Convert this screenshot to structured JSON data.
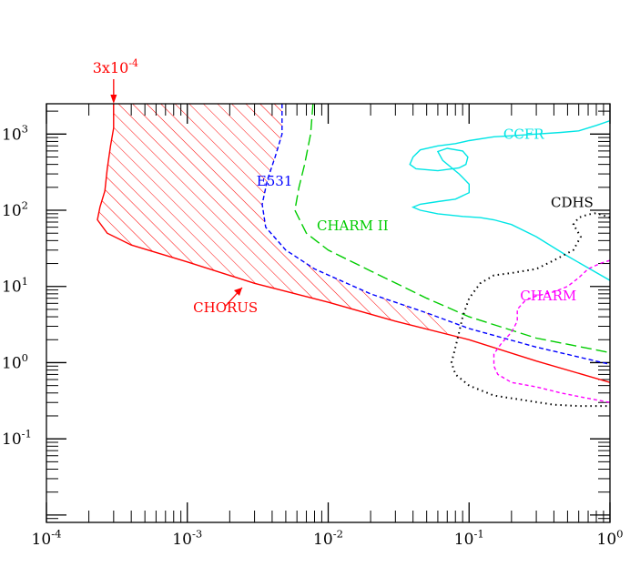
{
  "chart_data": {
    "type": "line",
    "x_scale": "log",
    "y_scale": "log",
    "xlim": [
      0.0001,
      1
    ],
    "ylim": [
      0.008,
      2500
    ],
    "x_ticks": [
      {
        "value": 0.0001,
        "base": "10",
        "exp": "-4"
      },
      {
        "value": 0.001,
        "base": "10",
        "exp": "-3"
      },
      {
        "value": 0.01,
        "base": "10",
        "exp": "-2"
      },
      {
        "value": 0.1,
        "base": "10",
        "exp": "-1"
      },
      {
        "value": 1,
        "base": "10",
        "exp": "0"
      }
    ],
    "y_ticks": [
      {
        "value": 0.1,
        "base": "10",
        "exp": "-1"
      },
      {
        "value": 1,
        "base": "10",
        "exp": "0"
      },
      {
        "value": 10,
        "base": "10",
        "exp": "1"
      },
      {
        "value": 100,
        "base": "10",
        "exp": "2"
      },
      {
        "value": 1000,
        "base": "10",
        "exp": "3"
      }
    ],
    "annotation": {
      "base": "3x10",
      "exp": "-4",
      "x": 0.0003,
      "color": "#ff0000"
    },
    "series": [
      {
        "name": "CHORUS",
        "color": "#ff0000",
        "dash": "solid",
        "label_at": [
          0.0011,
          4.6
        ],
        "hatched": true,
        "points": [
          [
            0.0003,
            2500
          ],
          [
            0.0003,
            1200
          ],
          [
            0.000285,
            700
          ],
          [
            0.00027,
            350
          ],
          [
            0.00026,
            180
          ],
          [
            0.00024,
            110
          ],
          [
            0.00023,
            75
          ],
          [
            0.00027,
            50
          ],
          [
            0.0004,
            35
          ],
          [
            0.001,
            21
          ],
          [
            0.003,
            11
          ],
          [
            0.01,
            6.2
          ],
          [
            0.03,
            3.5
          ],
          [
            0.1,
            2.0
          ],
          [
            0.3,
            1.05
          ],
          [
            1,
            0.55
          ]
        ]
      },
      {
        "name": "E531",
        "color": "#0000ff",
        "dash": "5,3",
        "label_at": [
          0.0031,
          210
        ],
        "points": [
          [
            0.0047,
            2500
          ],
          [
            0.0047,
            1000
          ],
          [
            0.0042,
            500
          ],
          [
            0.0037,
            250
          ],
          [
            0.0034,
            120
          ],
          [
            0.0036,
            60
          ],
          [
            0.005,
            30
          ],
          [
            0.008,
            17
          ],
          [
            0.02,
            8
          ],
          [
            0.05,
            4.5
          ],
          [
            0.1,
            2.8
          ],
          [
            0.3,
            1.6
          ],
          [
            1,
            0.95
          ]
        ]
      },
      {
        "name": "CHARM II",
        "color": "#00cc00",
        "dash": "12,5",
        "label_at": [
          0.0083,
          55
        ],
        "points": [
          [
            0.0078,
            2500
          ],
          [
            0.0075,
            1000
          ],
          [
            0.0068,
            400
          ],
          [
            0.0062,
            200
          ],
          [
            0.0058,
            100
          ],
          [
            0.007,
            50
          ],
          [
            0.01,
            30
          ],
          [
            0.02,
            16
          ],
          [
            0.05,
            7
          ],
          [
            0.1,
            4
          ],
          [
            0.3,
            2.1
          ],
          [
            1,
            1.35
          ]
        ]
      },
      {
        "name": "CCFR",
        "color": "#00e5e5",
        "dash": "solid",
        "label_at": [
          0.175,
          870
        ],
        "points": [
          [
            1,
            1500
          ],
          [
            0.8,
            1300
          ],
          [
            0.6,
            1100
          ],
          [
            0.45,
            1050
          ],
          [
            0.3,
            1000
          ],
          [
            0.2,
            950
          ],
          [
            0.15,
            920
          ],
          [
            0.1,
            820
          ],
          [
            0.08,
            750
          ],
          [
            0.06,
            700
          ],
          [
            0.045,
            620
          ],
          [
            0.04,
            500
          ],
          [
            0.038,
            400
          ],
          [
            0.042,
            350
          ],
          [
            0.06,
            330
          ],
          [
            0.085,
            360
          ],
          [
            0.095,
            400
          ],
          [
            0.098,
            500
          ],
          [
            0.09,
            600
          ],
          [
            0.07,
            650
          ],
          [
            0.06,
            590
          ],
          [
            0.065,
            450
          ],
          [
            0.085,
            300
          ],
          [
            0.1,
            220
          ],
          [
            0.1,
            170
          ],
          [
            0.08,
            140
          ],
          [
            0.06,
            130
          ],
          [
            0.045,
            120
          ],
          [
            0.04,
            110
          ],
          [
            0.045,
            100
          ],
          [
            0.06,
            90
          ],
          [
            0.09,
            83
          ],
          [
            0.12,
            80
          ],
          [
            0.15,
            75
          ],
          [
            0.2,
            65
          ],
          [
            0.3,
            45
          ],
          [
            0.5,
            25
          ],
          [
            1,
            12
          ]
        ]
      },
      {
        "name": "CDHS",
        "color": "#000000",
        "dash": "1.5,4",
        "label_at": [
          0.38,
          110
        ],
        "points": [
          [
            1,
            80
          ],
          [
            0.8,
            92
          ],
          [
            0.7,
            88
          ],
          [
            0.6,
            80
          ],
          [
            0.55,
            65
          ],
          [
            0.62,
            45
          ],
          [
            0.55,
            30
          ],
          [
            0.4,
            22
          ],
          [
            0.3,
            17
          ],
          [
            0.2,
            15
          ],
          [
            0.15,
            14
          ],
          [
            0.12,
            11
          ],
          [
            0.1,
            7
          ],
          [
            0.09,
            4
          ],
          [
            0.085,
            2.5
          ],
          [
            0.08,
            1.6
          ],
          [
            0.075,
            1.0
          ],
          [
            0.08,
            0.7
          ],
          [
            0.1,
            0.5
          ],
          [
            0.15,
            0.37
          ],
          [
            0.25,
            0.32
          ],
          [
            0.4,
            0.28
          ],
          [
            0.6,
            0.27
          ],
          [
            1,
            0.27
          ]
        ]
      },
      {
        "name": "CHARM",
        "color": "#ff00ff",
        "dash": "4,3",
        "label_at": [
          0.23,
          6.6
        ],
        "points": [
          [
            1,
            22
          ],
          [
            0.85,
            20
          ],
          [
            0.7,
            17
          ],
          [
            0.6,
            13
          ],
          [
            0.5,
            10
          ],
          [
            0.4,
            8.5
          ],
          [
            0.3,
            7.5
          ],
          [
            0.25,
            6.5
          ],
          [
            0.22,
            5
          ],
          [
            0.22,
            3.5
          ],
          [
            0.2,
            2.5
          ],
          [
            0.17,
            1.8
          ],
          [
            0.15,
            1.3
          ],
          [
            0.15,
            0.9
          ],
          [
            0.16,
            0.7
          ],
          [
            0.2,
            0.55
          ],
          [
            0.3,
            0.48
          ],
          [
            0.45,
            0.4
          ],
          [
            0.7,
            0.34
          ],
          [
            1,
            0.3
          ]
        ]
      }
    ]
  }
}
